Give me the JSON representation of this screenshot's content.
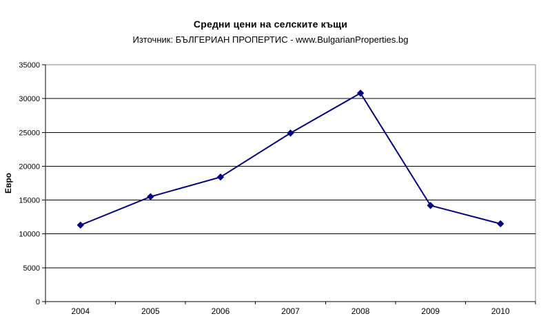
{
  "chart_data": {
    "type": "line",
    "title": "Средни цени на селските къщи",
    "subtitle": "Източник: БЪЛГЕРИАН ПРОПЕРТИС - www.BulgarianProperties.bg",
    "xlabel": "",
    "ylabel": "Евро",
    "categories": [
      "2004",
      "2005",
      "2006",
      "2007",
      "2008",
      "2009",
      "2010"
    ],
    "series": [
      {
        "name": "Средни цени на селските къщи",
        "values": [
          11300,
          15500,
          18400,
          24900,
          30800,
          14200,
          11500
        ]
      }
    ],
    "ylim": [
      0,
      35000
    ],
    "yticks": [
      0,
      5000,
      10000,
      15000,
      20000,
      25000,
      30000,
      35000
    ],
    "grid": true,
    "legend_position": "none",
    "marker": "diamond",
    "colors": {
      "series": "#000080",
      "gridline": "#000000",
      "axis": "#000000",
      "plot_border": "#808080",
      "background": "#ffffff",
      "text": "#000000"
    }
  }
}
